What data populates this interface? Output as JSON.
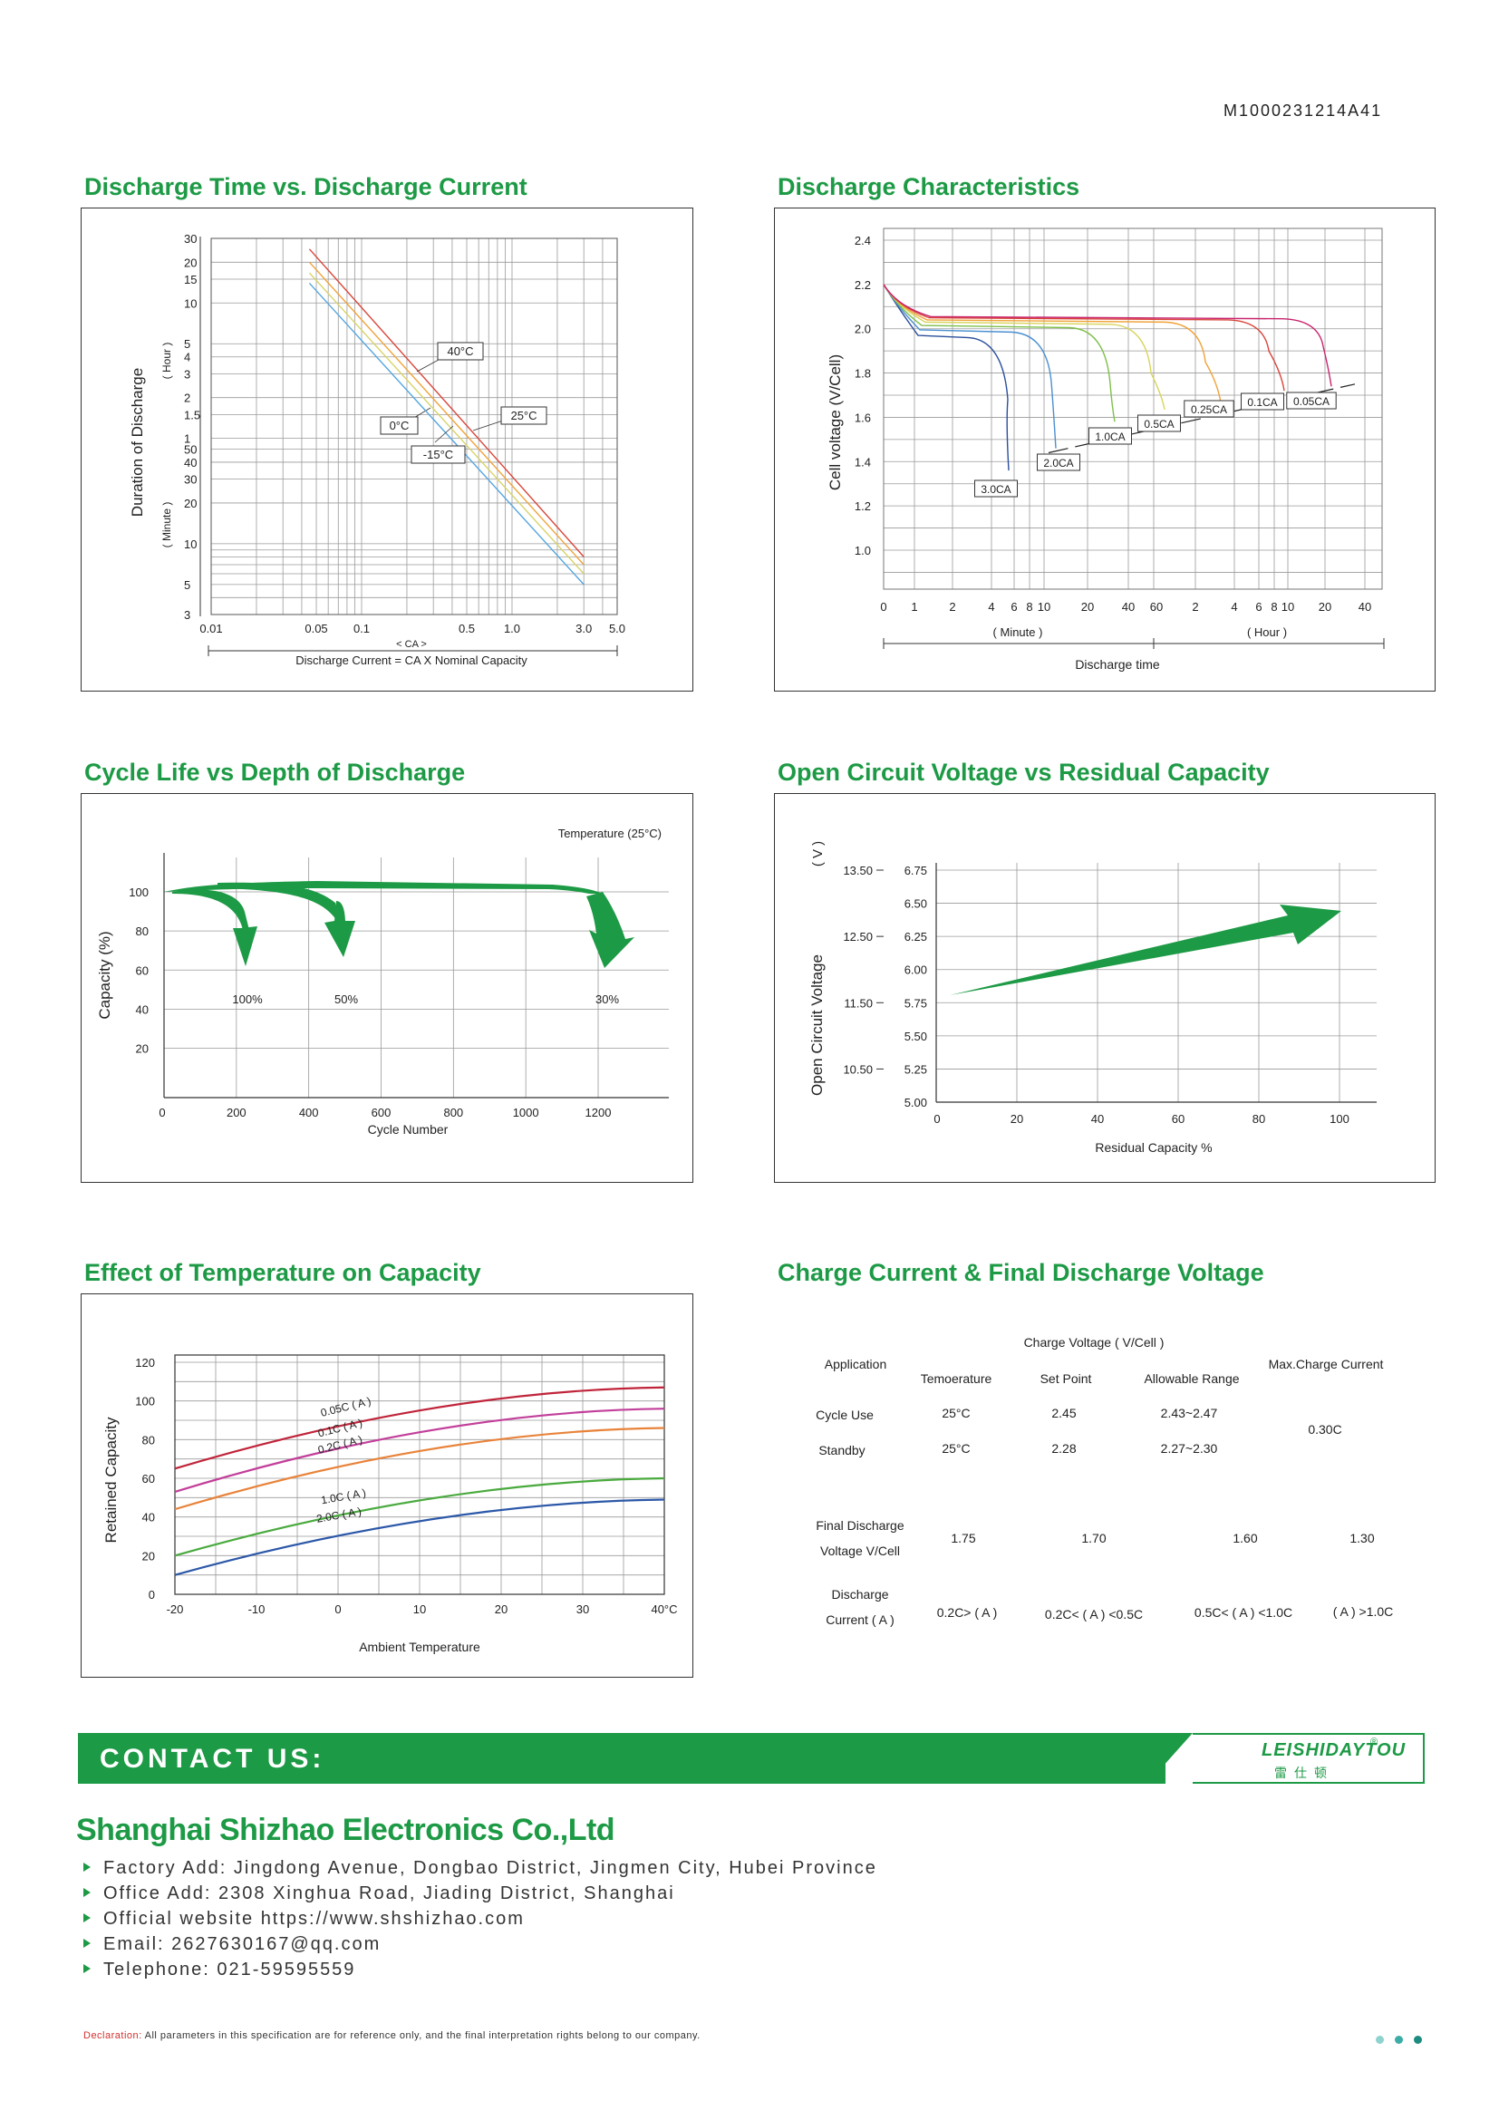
{
  "doc_id": "M1000231214A41",
  "panels": {
    "discharge_time": {
      "title": "Discharge Time vs. Discharge Current",
      "ylabel": "Duration of Discharge",
      "y_unit_hour": "( Hour )",
      "y_unit_minute": "( Minute )",
      "y_ticks_hour": [
        "30",
        "20",
        "15",
        "10",
        "5",
        "4",
        "3",
        "2",
        "1.5",
        "1"
      ],
      "y_ticks_minute": [
        "50",
        "40",
        "30",
        "20",
        "10",
        "5",
        "3"
      ],
      "x_ticks": [
        "0.01",
        "0.05",
        "0.1",
        "0.5",
        "1.0",
        "3.0",
        "5.0"
      ],
      "x_unit": "< CA >",
      "xlabel": "Discharge Current = CA X Nominal Capacity",
      "series": [
        {
          "name": "40°C",
          "color": "#d9463b",
          "start": [
            0.045,
            1500
          ],
          "end": [
            3.0,
            8
          ]
        },
        {
          "name": "25°C",
          "color": "#f0a33a",
          "start": [
            0.045,
            1200
          ],
          "end": [
            3.0,
            7
          ]
        },
        {
          "name": "0°C",
          "color": "#d8d46a",
          "start": [
            0.045,
            1000
          ],
          "end": [
            3.0,
            6
          ]
        },
        {
          "name": "-15°C",
          "color": "#54a6e0",
          "start": [
            0.045,
            840
          ],
          "end": [
            3.0,
            5
          ]
        }
      ]
    },
    "discharge_char": {
      "title": "Discharge Characteristics",
      "ylabel": "Cell voltage (V/Cell)",
      "y_ticks": [
        "2.4",
        "2.2",
        "2.0",
        "1.8",
        "1.6",
        "1.4",
        "1.2",
        "1.0"
      ],
      "x_ticks_minute": [
        "0",
        "1",
        "2",
        "4",
        "6",
        "8",
        "10",
        "20",
        "40",
        "60"
      ],
      "x_ticks_hour": [
        "2",
        "4",
        "6",
        "8",
        "10",
        "20",
        "40"
      ],
      "x_unit_minute": "( Minute )",
      "x_unit_hour": "( Hour )",
      "xlabel": "Discharge time",
      "curves": [
        {
          "name": "3.0CA",
          "color": "#2a4f9c"
        },
        {
          "name": "2.0CA",
          "color": "#4a8fd0"
        },
        {
          "name": "1.0CA",
          "color": "#7fbf4a"
        },
        {
          "name": "0.5CA",
          "color": "#d8d45a"
        },
        {
          "name": "0.25CA",
          "color": "#f0a33a"
        },
        {
          "name": "0.1CA",
          "color": "#d9463b"
        },
        {
          "name": "0.05CA",
          "color": "#c8246e"
        }
      ]
    },
    "cycle_life": {
      "title": "Cycle Life vs Depth of Discharge",
      "temperature": "Temperature  (25°C)",
      "ylabel": "Capacity  (%)",
      "xlabel": "Cycle Number",
      "y_ticks": [
        "100",
        "80",
        "60",
        "40",
        "20"
      ],
      "x_ticks": [
        "0",
        "200",
        "400",
        "600",
        "800",
        "1000",
        "1200"
      ],
      "labels": [
        "100%",
        "50%",
        "30%"
      ]
    },
    "ocv": {
      "title": "Open Circuit Voltage vs Residual Capacity",
      "ylabel": "Open Circuit Voltage",
      "y_unit": "( V )",
      "y_ticks_outer": [
        "13.50",
        "12.50",
        "11.50",
        "10.50"
      ],
      "y_ticks_inner": [
        "6.75",
        "6.50",
        "6.25",
        "6.00",
        "5.75",
        "5.50",
        "5.25",
        "5.00"
      ],
      "x_ticks": [
        "0",
        "20",
        "40",
        "60",
        "80",
        "100"
      ],
      "xlabel": "Residual Capacity %"
    },
    "temperature": {
      "title": "Effect of Temperature on Capacity",
      "ylabel": "Retained Capacity",
      "xlabel": "Ambient Temperature",
      "y_ticks": [
        "120",
        "100",
        "80",
        "60",
        "40",
        "20",
        "0"
      ],
      "x_ticks": [
        "-20",
        "-10",
        "0",
        "10",
        "20",
        "30",
        "40°C"
      ],
      "series": [
        {
          "name": "0.05C ( A )",
          "color": "#c0243a",
          "start": 65,
          "end": 107
        },
        {
          "name": "0.1C ( A )",
          "color": "#c23f9a",
          "start": 53,
          "end": 96
        },
        {
          "name": "0.2C ( A )",
          "color": "#e8833a",
          "start": 44,
          "end": 86
        },
        {
          "name": "1.0C ( A )",
          "color": "#4aaa3e",
          "start": 20,
          "end": 60
        },
        {
          "name": "2.0C ( A )",
          "color": "#2c58a8",
          "start": 10,
          "end": 49
        }
      ]
    },
    "charge_table": {
      "title": "Charge Current & Final Discharge Voltage",
      "charge_voltage_header": "Charge Voltage ( V/Cell )",
      "application": "Application",
      "temperature_header": "Temoerature",
      "set_point": "Set Point",
      "allowable_range": "Allowable Range",
      "max_charge": "Max.Charge Current",
      "cycle_use": {
        "label": "Cycle Use",
        "temp": "25°C",
        "set": "2.45",
        "range": "2.43~2.47"
      },
      "standby": {
        "label": "Standby",
        "temp": "25°C",
        "set": "2.28",
        "range": "2.27~2.30"
      },
      "max_value": "0.30C",
      "final_discharge_label1": "Final Discharge",
      "final_discharge_label2": "Voltage V/Cell",
      "final_values": [
        "1.75",
        "1.70",
        "1.60",
        "1.30"
      ],
      "discharge_current_label1": "Discharge",
      "discharge_current_label2": "Current ( A )",
      "current_values": [
        "0.2C> ( A )",
        "0.2C< ( A ) <0.5C",
        "0.5C< ( A ) <1.0C",
        "( A ) >1.0C"
      ]
    }
  },
  "contact": {
    "heading": "CONTACT US:",
    "logo_en": "LEISHIDAYTOU",
    "logo_cn": "雷仕顿",
    "logo_reg": "®",
    "company": "Shanghai Shizhao Electronics Co.,Ltd",
    "rows": [
      "Factory Add:   Jingdong Avenue, Dongbao District, Jingmen City, Hubei Province",
      "Office Add:   2308 Xinghua Road, Jiading District, Shanghai",
      "Official website https://www.shshizhao.com",
      "Email:   2627630167@qq.com",
      "Telephone:   021-59595559"
    ]
  },
  "declaration": {
    "label": "Declaration:",
    "text": " All parameters in this specification are for reference only, and the final interpretation rights belong to our company."
  },
  "colors": {
    "brand_green": "#1d9a45",
    "dot1": "#8fd3cf",
    "dot2": "#3aaea6",
    "dot3": "#1d8c80"
  }
}
